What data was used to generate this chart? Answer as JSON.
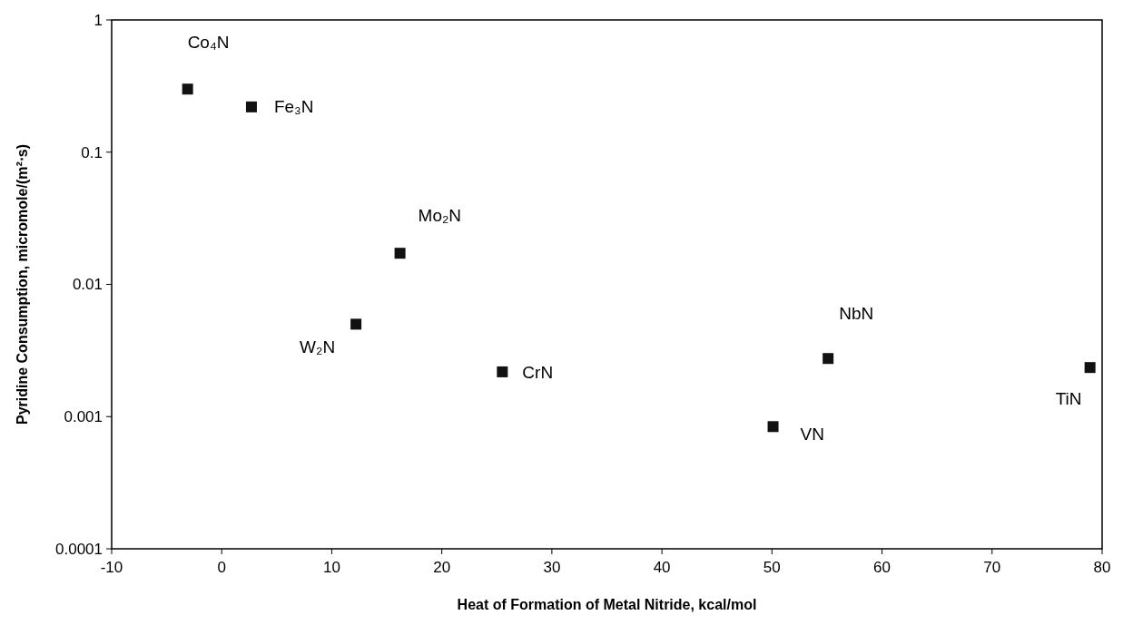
{
  "chart_data": {
    "type": "scatter",
    "xlabel": "Heat of Formation of Metal Nitride, kcal/mol",
    "ylabel": "Pyridine Consumption, micromole/(m²⋅s)",
    "x": [
      -3.1,
      2.7,
      16.2,
      12.2,
      25.5,
      50.1,
      55.1,
      78.9
    ],
    "series": [
      {
        "color": "#111111",
        "values": [
          0.3,
          0.22,
          0.0172,
          0.005,
          0.00218,
          0.00084,
          0.00275,
          0.00235
        ]
      }
    ],
    "xlim": [
      -10,
      80
    ],
    "xticks": [
      -10,
      0,
      10,
      20,
      30,
      40,
      50,
      60,
      70,
      80
    ],
    "ylim": [
      0.0001,
      1
    ],
    "yticks": [
      0.0001,
      0.001,
      0.01,
      0.1,
      1
    ],
    "log": "y",
    "grid": false,
    "marker": "square",
    "annotations": [
      {
        "text": "Co₄N",
        "x": -3.1,
        "y": 0.3
      },
      {
        "text": "Fe₃N",
        "x": 2.7,
        "y": 0.22
      },
      {
        "text": "Mo₂N",
        "x": 16.2,
        "y": 0.0172
      },
      {
        "text": "W₂N",
        "x": 12.2,
        "y": 0.005
      },
      {
        "text": "CrN",
        "x": 25.5,
        "y": 0.00218
      },
      {
        "text": "VN",
        "x": 50.1,
        "y": 0.00084
      },
      {
        "text": "NbN",
        "x": 55.1,
        "y": 0.00275
      },
      {
        "text": "TiN",
        "x": 78.9,
        "y": 0.00235
      }
    ]
  }
}
